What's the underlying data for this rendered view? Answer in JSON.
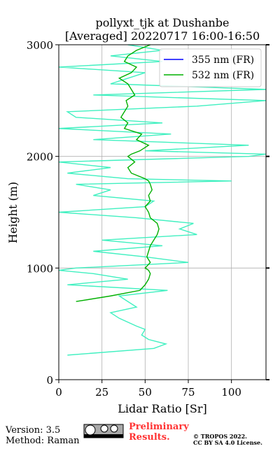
{
  "chart_data": {
    "type": "line",
    "title": [
      "pollyxt_tjk at Dushanbe",
      "[Averaged] 20220717 16:00-16:50"
    ],
    "xlabel": "Lidar Ratio [Sr]",
    "ylabel": "Height (m)",
    "xlim": [
      0,
      120
    ],
    "xticks": [
      0,
      25,
      50,
      75,
      100
    ],
    "ylim": [
      0,
      3000
    ],
    "yticks": [
      0,
      1000,
      2000,
      3000
    ],
    "grid": true,
    "legend": "upper right",
    "heights": [
      220,
      280,
      320,
      360,
      400,
      450,
      480,
      550,
      600,
      650,
      700,
      750,
      800,
      850,
      900,
      950,
      980,
      1000,
      1050,
      1100,
      1150,
      1200,
      1250,
      1300,
      1350,
      1400,
      1450,
      1500,
      1550,
      1600,
      1650,
      1700,
      1750,
      1780,
      1800,
      1850,
      1900,
      1950,
      2000,
      2020,
      2050,
      2100,
      2150,
      2200,
      2250,
      2300,
      2350,
      2400,
      2450,
      2500,
      2550,
      2600,
      2650,
      2700,
      2750,
      2800,
      2850,
      2900,
      2950,
      3000
    ],
    "series": [
      {
        "color": "#40f0c0",
        "values": [
          5,
          55,
          62,
          52,
          48,
          50,
          45,
          35,
          30,
          45,
          40,
          35,
          63,
          5,
          40,
          20,
          0,
          10,
          75,
          50,
          20,
          60,
          25,
          80,
          70,
          78,
          45,
          0,
          50,
          55,
          20,
          30,
          10,
          100,
          40,
          5,
          30,
          0,
          110,
          120,
          50,
          110,
          20,
          65,
          0,
          60,
          10,
          5,
          80,
          120,
          20,
          120,
          30,
          40,
          50,
          0,
          60,
          30,
          60,
          40
        ]
      },
      {
        "name": "355 nm (FR)",
        "color": "#0000ff",
        "values": [
          null,
          null,
          null,
          null,
          null,
          null,
          null,
          null,
          null,
          null,
          null,
          null,
          null,
          null,
          null,
          null,
          null,
          null,
          null,
          null,
          null,
          null,
          null,
          null,
          null,
          null,
          null,
          null,
          null,
          null,
          null,
          null,
          null,
          null,
          null,
          null,
          null,
          null,
          null,
          null,
          null,
          null,
          null,
          null,
          null,
          null,
          null,
          null,
          null,
          null,
          null,
          null,
          null,
          null,
          null,
          null,
          null,
          null,
          null,
          null
        ]
      },
      {
        "name": "532 nm (FR)",
        "color": "#00b000",
        "values": [
          null,
          null,
          null,
          null,
          null,
          null,
          null,
          null,
          null,
          null,
          10,
          30,
          47,
          50,
          52,
          53,
          52,
          50,
          53,
          51,
          52,
          53,
          55,
          57,
          58,
          57,
          53,
          52,
          50,
          53,
          52,
          54,
          53,
          52,
          50,
          42,
          40,
          44,
          40,
          42,
          47,
          52,
          45,
          48,
          38,
          40,
          36,
          38,
          40,
          39,
          44,
          42,
          40,
          35,
          42,
          45,
          38,
          40,
          45,
          53
        ]
      }
    ]
  },
  "footer": {
    "version": "Version: 3.5",
    "method": "Method: Raman",
    "preliminary": [
      "Preliminary",
      "Results."
    ],
    "copyright": [
      "© TROPOS 2022.",
      "CC BY SA 4.0 License."
    ]
  }
}
